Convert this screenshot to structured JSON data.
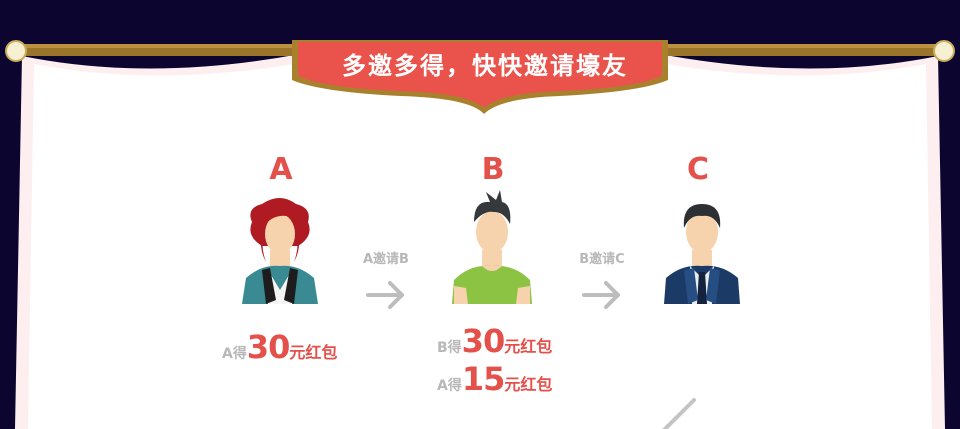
{
  "banner": {
    "title": "多邀多得，快快邀请壕友"
  },
  "people": [
    {
      "letter": "A"
    },
    {
      "letter": "B"
    },
    {
      "letter": "C"
    }
  ],
  "arrows": [
    {
      "label": "A邀请B"
    },
    {
      "label": "B邀请C"
    }
  ],
  "rewards": [
    {
      "prefix": "A得",
      "amount": "30",
      "suffix": "元红包"
    },
    {
      "prefix": "B得",
      "amount": "30",
      "suffix": "元红包"
    },
    {
      "prefix": "A得",
      "amount": "15",
      "suffix": "元红包"
    }
  ],
  "colors": {
    "background": "#0c0530",
    "accent_red": "#e4504a",
    "banner_red": "#e9534b",
    "curtain_rod": "#9a7428",
    "muted_gray": "#b8b8b8"
  },
  "icons": [
    "curtain-rod-icon",
    "female-avatar-icon",
    "male-casual-avatar-icon",
    "male-suit-avatar-icon",
    "arrow-right-icon"
  ]
}
